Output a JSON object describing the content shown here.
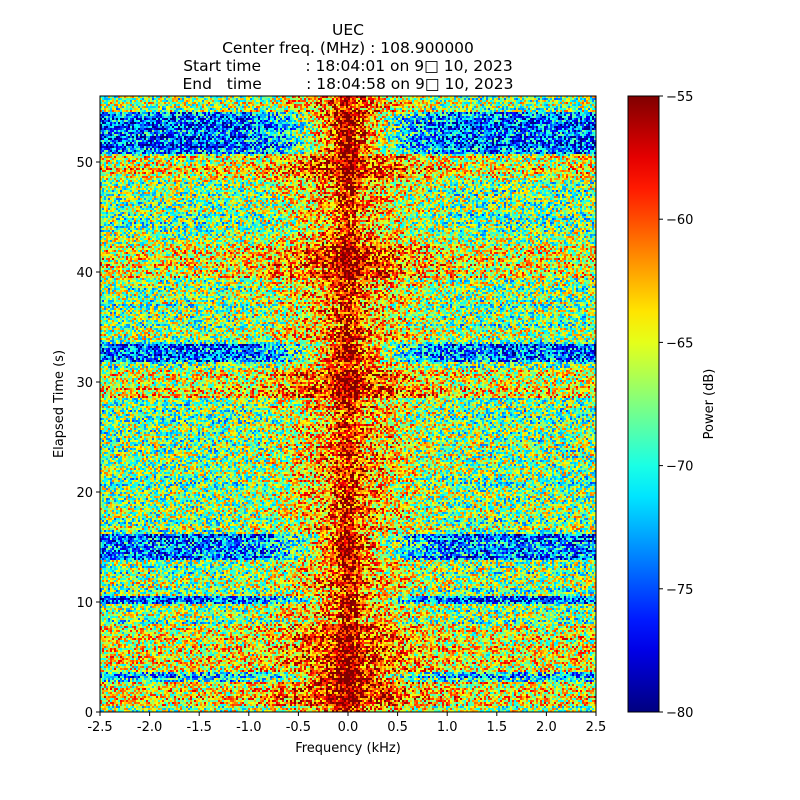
{
  "chart_data": {
    "type": "heatmap",
    "title_lines": [
      "UEC",
      "Center freq. (MHz) : 108.900000",
      "Start time         : 18:04:01 on 9□ 10, 2023",
      "End   time         : 18:04:58 on 9□ 10, 2023"
    ],
    "xlabel": "Frequency (kHz)",
    "ylabel": "Elapsed Time (s)",
    "xlim": [
      -2.5,
      2.5
    ],
    "ylim": [
      0,
      56
    ],
    "xticks": [
      "-2.5",
      "-2.0",
      "-1.5",
      "-1.0",
      "-0.5",
      "0.0",
      "0.5",
      "1.0",
      "1.5",
      "2.0",
      "2.5"
    ],
    "xtick_values": [
      -2.5,
      -2.0,
      -1.5,
      -1.0,
      -0.5,
      0.0,
      0.5,
      1.0,
      1.5,
      2.0,
      2.5
    ],
    "yticks": [
      "0",
      "10",
      "20",
      "30",
      "40",
      "50"
    ],
    "ytick_values": [
      0,
      10,
      20,
      30,
      40,
      50
    ],
    "colorbar": {
      "label": "Power (dB)",
      "range": [
        -80,
        -55
      ],
      "ticks": [
        "−80",
        "−75",
        "−70",
        "−65",
        "−60",
        "−55"
      ],
      "tick_values": [
        -80,
        -75,
        -70,
        -65,
        -60,
        -55
      ],
      "colormap": "jet"
    },
    "features": {
      "carrier_center_khz": 0.0,
      "low_power_bands_s": [
        [
          2.8,
          3.6
        ],
        [
          9.8,
          10.5
        ],
        [
          13.8,
          16.2
        ],
        [
          31.8,
          33.4
        ],
        [
          50.8,
          54.5
        ]
      ],
      "high_power_bands_s": [
        [
          0.5,
          8.0
        ],
        [
          28.5,
          31.0
        ],
        [
          39.5,
          42.5
        ],
        [
          48.5,
          50.5
        ]
      ]
    }
  }
}
